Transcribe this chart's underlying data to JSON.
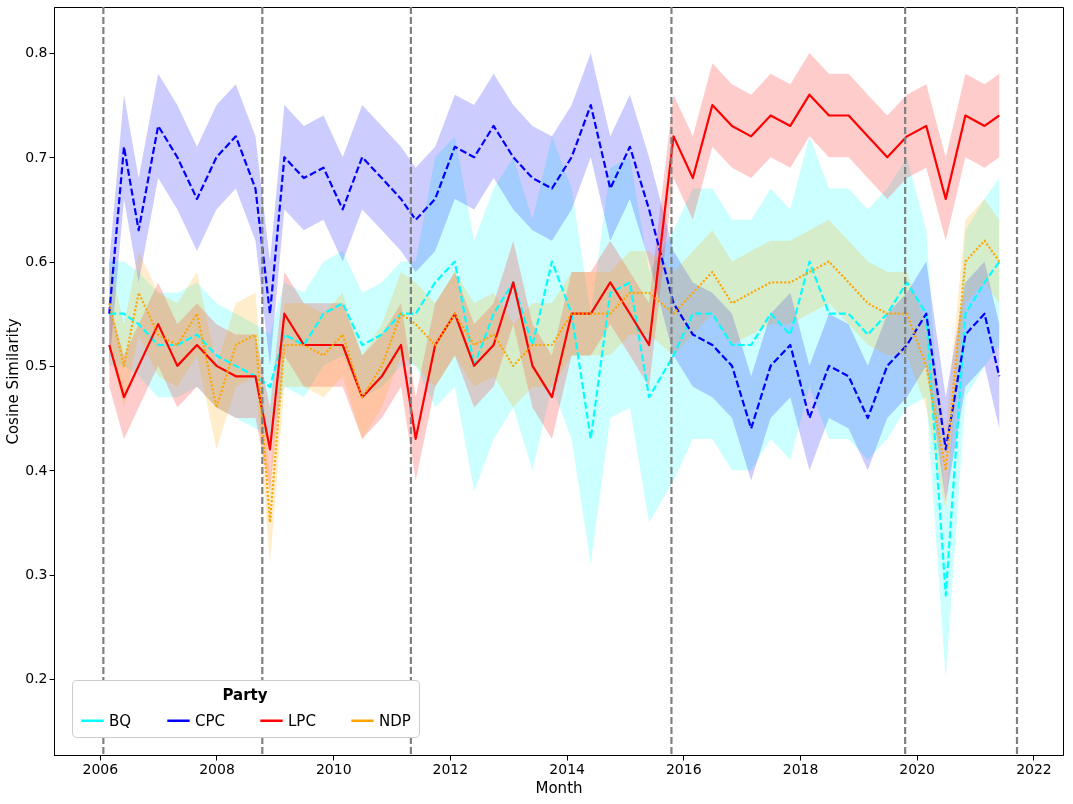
{
  "chart_data": {
    "type": "line",
    "xlabel": "Month",
    "ylabel": "Cosine Similarity",
    "legend_title": "Party",
    "legend": "bottom left",
    "grid": false,
    "xlim": [
      "2005-03-20",
      "2022-07-05"
    ],
    "xticks": [
      "2006",
      "2008",
      "2010",
      "2012",
      "2014",
      "2016",
      "2018",
      "2020",
      "2022"
    ],
    "ylim": [
      0.127,
      0.844
    ],
    "yticks": [
      0.2,
      0.3,
      0.4,
      0.5,
      0.6,
      0.7,
      0.8
    ],
    "x": [
      "2006-03",
      "2006-06",
      "2006-09",
      "2007-01",
      "2007-05",
      "2007-09",
      "2008-01",
      "2008-05",
      "2008-09",
      "2008-12",
      "2009-03",
      "2009-07",
      "2009-11",
      "2010-03",
      "2010-07",
      "2010-11",
      "2011-03",
      "2011-06",
      "2011-10",
      "2012-02",
      "2012-06",
      "2012-10",
      "2013-02",
      "2013-06",
      "2013-10",
      "2014-02",
      "2014-06",
      "2014-10",
      "2015-02",
      "2015-06",
      "2015-11",
      "2016-03",
      "2016-07",
      "2016-11",
      "2017-03",
      "2017-07",
      "2017-11",
      "2018-03",
      "2018-07",
      "2018-11",
      "2019-03",
      "2019-07",
      "2019-11",
      "2020-03",
      "2020-07",
      "2020-11",
      "2021-03",
      "2021-06"
    ],
    "series": [
      {
        "name": "BQ",
        "color": "#00ffff",
        "line_style": "dashed",
        "values": [
          0.55,
          0.55,
          0.54,
          0.52,
          0.52,
          0.53,
          0.51,
          0.5,
          0.49,
          0.48,
          0.53,
          0.52,
          0.55,
          0.56,
          0.52,
          0.53,
          0.55,
          0.55,
          0.58,
          0.6,
          0.5,
          0.55,
          0.58,
          0.52,
          0.6,
          0.55,
          0.43,
          0.57,
          0.58,
          0.47,
          0.51,
          0.55,
          0.55,
          0.52,
          0.52,
          0.55,
          0.53,
          0.6,
          0.55,
          0.55,
          0.53,
          0.55,
          0.58,
          0.55,
          0.28,
          0.55,
          0.58,
          0.6
        ],
        "lower": [
          0.5,
          0.5,
          0.49,
          0.47,
          0.47,
          0.48,
          0.46,
          0.45,
          0.44,
          0.43,
          0.48,
          0.47,
          0.5,
          0.51,
          0.47,
          0.48,
          0.5,
          0.5,
          0.46,
          0.48,
          0.38,
          0.43,
          0.46,
          0.4,
          0.48,
          0.43,
          0.31,
          0.45,
          0.46,
          0.35,
          0.39,
          0.43,
          0.43,
          0.4,
          0.4,
          0.43,
          0.41,
          0.48,
          0.43,
          0.43,
          0.41,
          0.43,
          0.46,
          0.47,
          0.2,
          0.47,
          0.5,
          0.52
        ],
        "upper": [
          0.6,
          0.6,
          0.59,
          0.57,
          0.57,
          0.58,
          0.56,
          0.55,
          0.54,
          0.53,
          0.58,
          0.57,
          0.6,
          0.61,
          0.57,
          0.58,
          0.6,
          0.6,
          0.7,
          0.72,
          0.62,
          0.67,
          0.7,
          0.64,
          0.72,
          0.67,
          0.55,
          0.69,
          0.7,
          0.59,
          0.63,
          0.67,
          0.67,
          0.64,
          0.64,
          0.67,
          0.65,
          0.72,
          0.67,
          0.67,
          0.65,
          0.67,
          0.7,
          0.63,
          0.36,
          0.63,
          0.66,
          0.68
        ]
      },
      {
        "name": "CPC",
        "color": "#0000ff",
        "line_style": "dashed",
        "values": [
          0.55,
          0.71,
          0.63,
          0.73,
          0.7,
          0.66,
          0.7,
          0.72,
          0.67,
          0.55,
          0.7,
          0.68,
          0.69,
          0.65,
          0.7,
          0.68,
          0.66,
          0.64,
          0.66,
          0.71,
          0.7,
          0.73,
          0.7,
          0.68,
          0.67,
          0.7,
          0.75,
          0.67,
          0.71,
          0.65,
          0.56,
          0.53,
          0.52,
          0.5,
          0.44,
          0.5,
          0.52,
          0.45,
          0.5,
          0.49,
          0.45,
          0.5,
          0.52,
          0.55,
          0.42,
          0.53,
          0.55,
          0.49
        ],
        "lower": [
          0.5,
          0.66,
          0.58,
          0.68,
          0.65,
          0.61,
          0.65,
          0.67,
          0.62,
          0.5,
          0.65,
          0.63,
          0.64,
          0.6,
          0.65,
          0.63,
          0.61,
          0.59,
          0.61,
          0.66,
          0.65,
          0.68,
          0.65,
          0.63,
          0.62,
          0.65,
          0.7,
          0.62,
          0.66,
          0.6,
          0.51,
          0.48,
          0.47,
          0.45,
          0.39,
          0.45,
          0.47,
          0.4,
          0.45,
          0.44,
          0.4,
          0.45,
          0.47,
          0.5,
          0.37,
          0.48,
          0.5,
          0.44
        ],
        "upper": [
          0.6,
          0.76,
          0.68,
          0.78,
          0.75,
          0.71,
          0.75,
          0.77,
          0.72,
          0.6,
          0.75,
          0.73,
          0.74,
          0.7,
          0.75,
          0.73,
          0.71,
          0.69,
          0.71,
          0.76,
          0.75,
          0.78,
          0.75,
          0.73,
          0.72,
          0.75,
          0.8,
          0.72,
          0.76,
          0.7,
          0.61,
          0.58,
          0.57,
          0.55,
          0.49,
          0.55,
          0.57,
          0.5,
          0.55,
          0.54,
          0.5,
          0.55,
          0.57,
          0.6,
          0.47,
          0.58,
          0.6,
          0.54
        ]
      },
      {
        "name": "LPC",
        "color": "#ff0000",
        "line_style": "solid",
        "values": [
          0.52,
          0.47,
          0.5,
          0.54,
          0.5,
          0.52,
          0.5,
          0.49,
          0.49,
          0.42,
          0.55,
          0.52,
          0.52,
          0.52,
          0.47,
          0.49,
          0.52,
          0.43,
          0.52,
          0.55,
          0.5,
          0.52,
          0.58,
          0.5,
          0.47,
          0.55,
          0.55,
          0.58,
          0.55,
          0.52,
          0.72,
          0.68,
          0.75,
          0.73,
          0.72,
          0.74,
          0.73,
          0.76,
          0.74,
          0.74,
          0.72,
          0.7,
          0.72,
          0.73,
          0.66,
          0.74,
          0.73,
          0.74
        ],
        "lower": [
          0.48,
          0.43,
          0.46,
          0.5,
          0.46,
          0.48,
          0.46,
          0.45,
          0.45,
          0.38,
          0.51,
          0.48,
          0.48,
          0.48,
          0.43,
          0.45,
          0.48,
          0.39,
          0.48,
          0.51,
          0.46,
          0.48,
          0.54,
          0.46,
          0.43,
          0.51,
          0.51,
          0.54,
          0.51,
          0.48,
          0.68,
          0.64,
          0.71,
          0.69,
          0.68,
          0.7,
          0.69,
          0.72,
          0.7,
          0.7,
          0.68,
          0.66,
          0.68,
          0.69,
          0.62,
          0.7,
          0.69,
          0.7
        ],
        "upper": [
          0.56,
          0.51,
          0.54,
          0.58,
          0.54,
          0.56,
          0.54,
          0.53,
          0.53,
          0.46,
          0.59,
          0.56,
          0.56,
          0.56,
          0.51,
          0.53,
          0.56,
          0.47,
          0.56,
          0.59,
          0.54,
          0.56,
          0.62,
          0.54,
          0.51,
          0.59,
          0.59,
          0.62,
          0.59,
          0.56,
          0.76,
          0.72,
          0.79,
          0.77,
          0.76,
          0.78,
          0.77,
          0.8,
          0.78,
          0.78,
          0.76,
          0.74,
          0.76,
          0.77,
          0.7,
          0.78,
          0.77,
          0.78
        ]
      },
      {
        "name": "NDP",
        "color": "#ffa500",
        "line_style": "dotted",
        "values": [
          0.56,
          0.5,
          0.57,
          0.53,
          0.52,
          0.55,
          0.46,
          0.52,
          0.53,
          0.35,
          0.52,
          0.52,
          0.51,
          0.53,
          0.47,
          0.5,
          0.55,
          0.54,
          0.52,
          0.55,
          0.52,
          0.53,
          0.5,
          0.52,
          0.52,
          0.55,
          0.55,
          0.55,
          0.57,
          0.57,
          0.55,
          0.57,
          0.59,
          0.56,
          0.57,
          0.58,
          0.58,
          0.59,
          0.6,
          0.58,
          0.56,
          0.55,
          0.55,
          0.5,
          0.4,
          0.6,
          0.62,
          0.6
        ],
        "lower": [
          0.52,
          0.46,
          0.53,
          0.49,
          0.48,
          0.51,
          0.42,
          0.48,
          0.49,
          0.31,
          0.48,
          0.48,
          0.47,
          0.49,
          0.43,
          0.46,
          0.51,
          0.5,
          0.48,
          0.51,
          0.48,
          0.49,
          0.46,
          0.48,
          0.48,
          0.51,
          0.51,
          0.51,
          0.53,
          0.53,
          0.51,
          0.53,
          0.55,
          0.52,
          0.53,
          0.54,
          0.54,
          0.55,
          0.56,
          0.54,
          0.52,
          0.51,
          0.51,
          0.46,
          0.36,
          0.56,
          0.58,
          0.56
        ],
        "upper": [
          0.6,
          0.54,
          0.61,
          0.57,
          0.56,
          0.59,
          0.5,
          0.56,
          0.57,
          0.39,
          0.56,
          0.56,
          0.55,
          0.57,
          0.51,
          0.54,
          0.59,
          0.58,
          0.56,
          0.59,
          0.56,
          0.57,
          0.54,
          0.56,
          0.56,
          0.59,
          0.59,
          0.59,
          0.61,
          0.61,
          0.59,
          0.61,
          0.63,
          0.6,
          0.61,
          0.62,
          0.62,
          0.63,
          0.64,
          0.62,
          0.6,
          0.59,
          0.59,
          0.54,
          0.44,
          0.64,
          0.66,
          0.64
        ]
      }
    ],
    "ref_lines": [
      {
        "axis": "x",
        "value": "2006-01-23",
        "color": "#808080",
        "line_style": "dashed"
      },
      {
        "axis": "x",
        "value": "2008-10-14",
        "color": "#808080",
        "line_style": "dashed"
      },
      {
        "axis": "x",
        "value": "2011-05-02",
        "color": "#808080",
        "line_style": "dashed"
      },
      {
        "axis": "x",
        "value": "2015-10-19",
        "color": "#808080",
        "line_style": "dashed"
      },
      {
        "axis": "x",
        "value": "2019-10-21",
        "color": "#808080",
        "line_style": "dashed"
      },
      {
        "axis": "x",
        "value": "2021-09-20",
        "color": "#808080",
        "line_style": "dashed"
      }
    ]
  }
}
